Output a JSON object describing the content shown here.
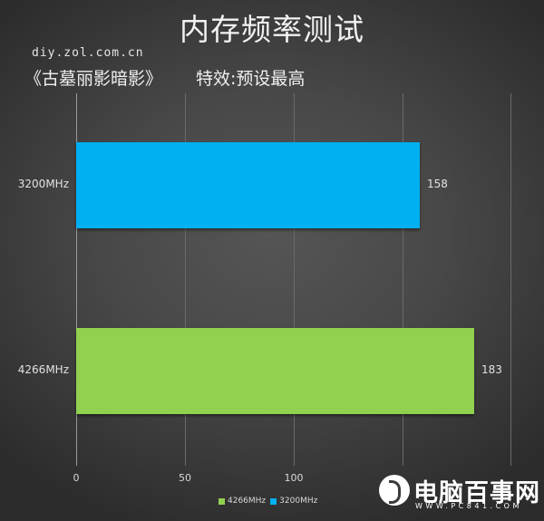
{
  "header": {
    "title": "内存频率测试",
    "site": "diy.zol.com.cn",
    "game": "《古墓丽影暗影》",
    "setting": "特效:预设最高"
  },
  "chart_data": {
    "type": "bar",
    "orientation": "horizontal",
    "title": "内存频率测试",
    "subtitle": "《古墓丽影暗影》 特效:预设最高",
    "categories": [
      "3200MHz",
      "4266MHz"
    ],
    "values": [
      158,
      183
    ],
    "series": [
      {
        "name": "4266MHz",
        "color": "#92d050",
        "values": [
          null,
          183
        ]
      },
      {
        "name": "3200MHz",
        "color": "#00b0f0",
        "values": [
          158,
          null
        ]
      }
    ],
    "xlabel": "",
    "ylabel": "",
    "xlim": [
      0,
      200
    ],
    "xticks": [
      "0",
      "50",
      "100",
      "150",
      "200"
    ],
    "grid": true,
    "legend_position": "bottom"
  },
  "bars": [
    {
      "label": "3200MHz",
      "value": "158",
      "color": "#00b0f0"
    },
    {
      "label": "4266MHz",
      "value": "183",
      "color": "#92d050"
    }
  ],
  "axis": {
    "ticks": [
      "0",
      "50",
      "100",
      "",
      ""
    ]
  },
  "legend": [
    {
      "label": "4266MHz",
      "color": "#92d050"
    },
    {
      "label": "3200MHz",
      "color": "#00b0f0"
    }
  ],
  "watermark": {
    "name": "电脑百事网",
    "url": "WWW.PC841.COM"
  }
}
